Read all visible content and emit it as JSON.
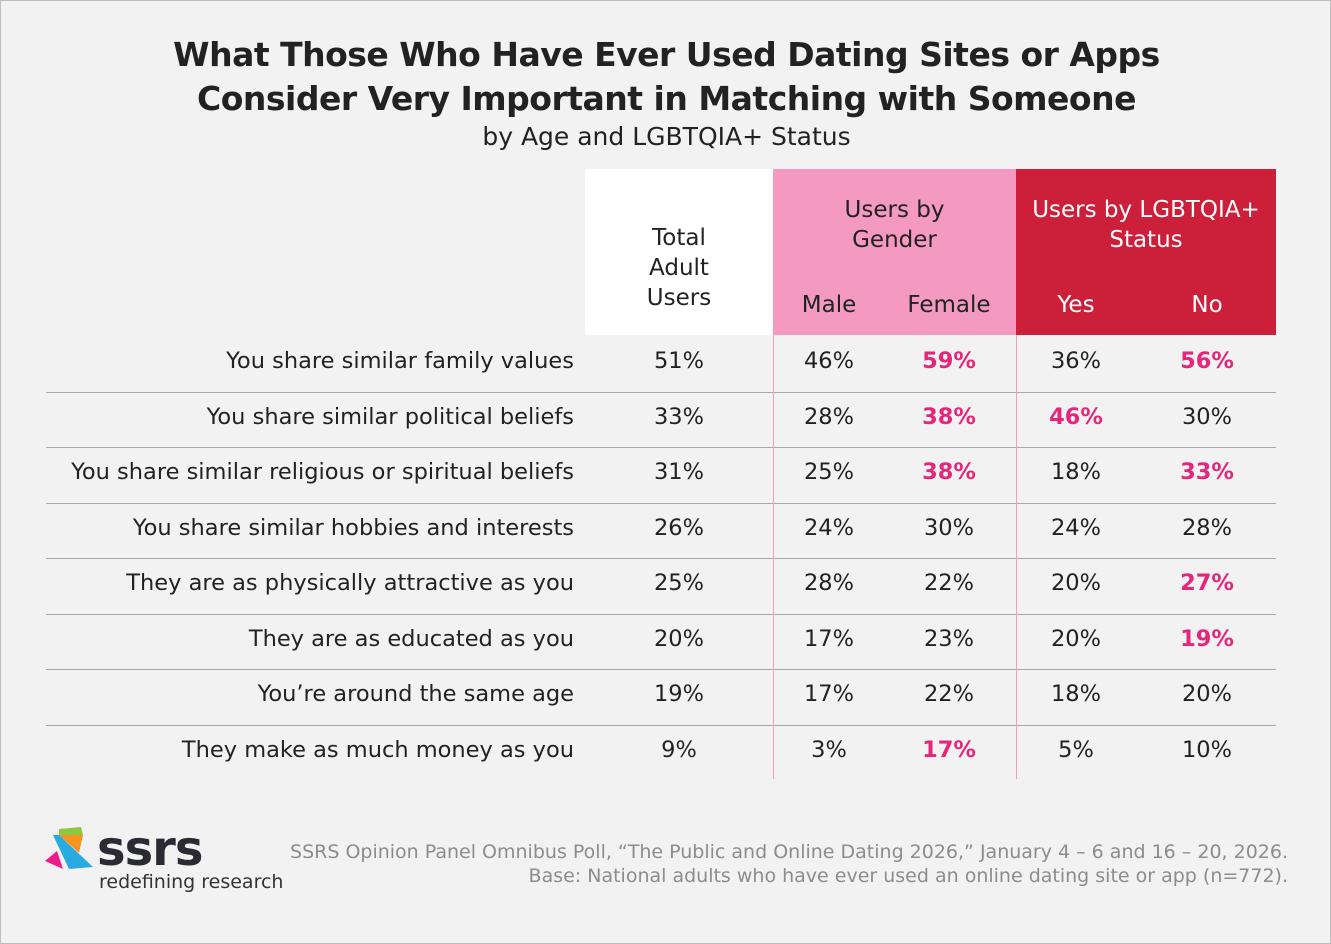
{
  "chart_data": {
    "type": "table",
    "title_line1": "What Those Who Have Ever Used Dating Sites or Apps",
    "title_line2": "Consider Very Important in Matching with Someone",
    "subtitle": "by Age and LGBTQIA+ Status",
    "column_groups": [
      {
        "label": "Total Adult Users",
        "color": "#ffffff"
      },
      {
        "label": "Users by Gender",
        "color": "#f49ac1",
        "columns": [
          "Male",
          "Female"
        ]
      },
      {
        "label": "Users by LGBTQIA+ Status",
        "color": "#cc1f3a",
        "columns": [
          "Yes",
          "No"
        ]
      }
    ],
    "columns": [
      "Total Adult Users",
      "Male",
      "Female",
      "Yes",
      "No"
    ],
    "highlight_color": "#e5267a",
    "rows": [
      {
        "label": "You share similar family values",
        "values": [
          "51%",
          "46%",
          "59%",
          "36%",
          "56%"
        ],
        "highlight": [
          false,
          false,
          true,
          false,
          true
        ]
      },
      {
        "label": "You share similar political beliefs",
        "values": [
          "33%",
          "28%",
          "38%",
          "46%",
          "30%"
        ],
        "highlight": [
          false,
          false,
          true,
          true,
          false
        ]
      },
      {
        "label": "You share similar religious or spiritual beliefs",
        "values": [
          "31%",
          "25%",
          "38%",
          "18%",
          "33%"
        ],
        "highlight": [
          false,
          false,
          true,
          false,
          true
        ]
      },
      {
        "label": "You share similar hobbies and interests",
        "values": [
          "26%",
          "24%",
          "30%",
          "24%",
          "28%"
        ],
        "highlight": [
          false,
          false,
          false,
          false,
          false
        ]
      },
      {
        "label": "They are as physically attractive as you",
        "values": [
          "25%",
          "28%",
          "22%",
          "20%",
          "27%"
        ],
        "highlight": [
          false,
          false,
          false,
          false,
          true
        ]
      },
      {
        "label": "They are as educated as you",
        "values": [
          "20%",
          "17%",
          "23%",
          "20%",
          "19%"
        ],
        "highlight": [
          false,
          false,
          false,
          false,
          true
        ]
      },
      {
        "label": "You’re around the same age",
        "values": [
          "19%",
          "17%",
          "22%",
          "18%",
          "20%"
        ],
        "highlight": [
          false,
          false,
          false,
          false,
          false
        ]
      },
      {
        "label": "They make as much money as you",
        "values": [
          "9%",
          "3%",
          "17%",
          "5%",
          "10%"
        ],
        "highlight": [
          false,
          false,
          true,
          false,
          false
        ]
      }
    ]
  },
  "footer": {
    "logo_text": "ssrs",
    "logo_tagline": "redefining research",
    "source_line1": "SSRS Opinion Panel Omnibus Poll, “The Public and Online Dating 2026,” January 4 – 6 and 16 – 20, 2026.",
    "source_line2": "Base: National adults who have ever used an online dating site or app (n=772)."
  }
}
